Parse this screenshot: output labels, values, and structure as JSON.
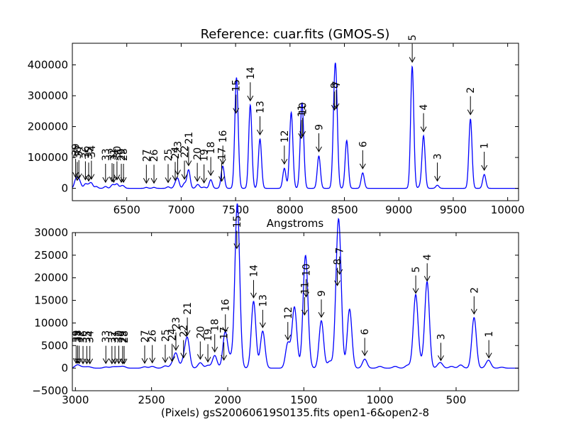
{
  "chart_data": [
    {
      "type": "line",
      "title": "Reference: cuar.fits (GMOS-S)",
      "xlabel": "Angstroms",
      "ylabel": "",
      "xlim": [
        6000,
        10100
      ],
      "ylim": [
        -40000,
        470000
      ],
      "x_ticks": [
        6500,
        7000,
        7500,
        8000,
        8500,
        9000,
        9500,
        10000
      ],
      "x_tick_labels": [
        "6500",
        "7000",
        "7500",
        "8000",
        "8500",
        "9000",
        "9500",
        "10000"
      ],
      "y_ticks": [
        0,
        100000,
        200000,
        300000,
        400000
      ],
      "y_tick_labels": [
        "0",
        "100000",
        "200000",
        "300000",
        "400000"
      ],
      "line_color": "#0000ff",
      "series": [
        {
          "peaks": [
            {
              "x": 6030,
              "y": 22000
            },
            {
              "x": 6045,
              "y": 12000
            },
            {
              "x": 6060,
              "y": 18000
            },
            {
              "x": 6075,
              "y": 8000
            },
            {
              "x": 6120,
              "y": 14000
            },
            {
              "x": 6150,
              "y": 10000
            },
            {
              "x": 6175,
              "y": 16000
            },
            {
              "x": 6220,
              "y": 6000
            },
            {
              "x": 6305,
              "y": 6000
            },
            {
              "x": 6365,
              "y": 8000
            },
            {
              "x": 6380,
              "y": 6000
            },
            {
              "x": 6410,
              "y": 14000
            },
            {
              "x": 6450,
              "y": 6000
            },
            {
              "x": 6470,
              "y": 6000
            },
            {
              "x": 6680,
              "y": 3000
            },
            {
              "x": 6750,
              "y": 3000
            },
            {
              "x": 6880,
              "y": 5000
            },
            {
              "x": 6945,
              "y": 12000
            },
            {
              "x": 6968,
              "y": 30000
            },
            {
              "x": 7030,
              "y": 16000
            },
            {
              "x": 7068,
              "y": 60000
            },
            {
              "x": 7148,
              "y": 9000
            },
            {
              "x": 7162,
              "y": 5000
            },
            {
              "x": 7210,
              "y": 4000
            },
            {
              "x": 7272,
              "y": 28000
            },
            {
              "x": 7372,
              "y": 9000
            },
            {
              "x": 7383,
              "y": 65000
            },
            {
              "x": 7504,
              "y": 230000
            },
            {
              "x": 7515,
              "y": 155000
            },
            {
              "x": 7635,
              "y": 270000
            },
            {
              "x": 7724,
              "y": 160000
            },
            {
              "x": 7948,
              "y": 65000
            },
            {
              "x": 8006,
              "y": 108000
            },
            {
              "x": 8015,
              "y": 150000
            },
            {
              "x": 8104,
              "y": 148000
            },
            {
              "x": 8116,
              "y": 155000
            },
            {
              "x": 8265,
              "y": 105000
            },
            {
              "x": 8408,
              "y": 240000
            },
            {
              "x": 8425,
              "y": 245000
            },
            {
              "x": 8521,
              "y": 155000
            },
            {
              "x": 8668,
              "y": 50000
            },
            {
              "x": 9123,
              "y": 395000
            },
            {
              "x": 9195,
              "y": 6000
            },
            {
              "x": 9227,
              "y": 170000
            },
            {
              "x": 9354,
              "y": 10000
            },
            {
              "x": 9658,
              "y": 225000
            },
            {
              "x": 9785,
              "y": 45000
            }
          ]
        }
      ],
      "annotations": [
        {
          "label": "39",
          "x": 6030,
          "y": 22000
        },
        {
          "label": "38",
          "x": 6045,
          "y": 12000
        },
        {
          "label": "37",
          "x": 6060,
          "y": 18000
        },
        {
          "label": "36",
          "x": 6120,
          "y": 14000
        },
        {
          "label": "35",
          "x": 6150,
          "y": 10000
        },
        {
          "label": "34",
          "x": 6175,
          "y": 16000
        },
        {
          "label": "33",
          "x": 6305,
          "y": 6000
        },
        {
          "label": "32",
          "x": 6365,
          "y": 8000
        },
        {
          "label": "31",
          "x": 6380,
          "y": 6000
        },
        {
          "label": "30",
          "x": 6410,
          "y": 14000
        },
        {
          "label": "29",
          "x": 6450,
          "y": 6000
        },
        {
          "label": "28",
          "x": 6470,
          "y": 6000
        },
        {
          "label": "27",
          "x": 6680,
          "y": 3000
        },
        {
          "label": "26",
          "x": 6750,
          "y": 3000
        },
        {
          "label": "25",
          "x": 6880,
          "y": 5000
        },
        {
          "label": "24",
          "x": 6945,
          "y": 12000
        },
        {
          "label": "23",
          "x": 6968,
          "y": 30000
        },
        {
          "label": "22",
          "x": 7030,
          "y": 16000
        },
        {
          "label": "21",
          "x": 7068,
          "y": 60000
        },
        {
          "label": "20",
          "x": 7148,
          "y": 9000
        },
        {
          "label": "19",
          "x": 7210,
          "y": 4000
        },
        {
          "label": "18",
          "x": 7272,
          "y": 28000
        },
        {
          "label": "17",
          "x": 7372,
          "y": 9000
        },
        {
          "label": "16",
          "x": 7383,
          "y": 65000
        },
        {
          "label": "15",
          "x": 7504,
          "y": 230000
        },
        {
          "label": "14",
          "x": 7635,
          "y": 270000
        },
        {
          "label": "13",
          "x": 7724,
          "y": 160000
        },
        {
          "label": "12",
          "x": 7948,
          "y": 65000
        },
        {
          "label": "11",
          "x": 8104,
          "y": 148000
        },
        {
          "label": "10",
          "x": 8116,
          "y": 155000
        },
        {
          "label": "9",
          "x": 8265,
          "y": 105000
        },
        {
          "label": "8",
          "x": 8408,
          "y": 240000
        },
        {
          "label": "7",
          "x": 8425,
          "y": 245000
        },
        {
          "label": "6",
          "x": 8668,
          "y": 50000
        },
        {
          "label": "5",
          "x": 9123,
          "y": 395000
        },
        {
          "label": "4",
          "x": 9227,
          "y": 170000
        },
        {
          "label": "3",
          "x": 9354,
          "y": 10000
        },
        {
          "label": "2",
          "x": 9658,
          "y": 225000
        },
        {
          "label": "1",
          "x": 9785,
          "y": 45000
        }
      ]
    },
    {
      "type": "line",
      "title": "",
      "xlabel": "(Pixels) gsS20060619S0135.fits open1-6&open2-8",
      "ylabel": "",
      "xlim": [
        3020,
        90
      ],
      "ylim": [
        -5000,
        30000
      ],
      "x_ticks": [
        3000,
        2500,
        2000,
        1500,
        1000,
        500
      ],
      "x_tick_labels": [
        "3000",
        "2500",
        "2000",
        "1500",
        "1000",
        "500"
      ],
      "y_ticks": [
        -5000,
        0,
        5000,
        10000,
        15000,
        20000,
        25000,
        30000
      ],
      "y_tick_labels": [
        "−5000",
        "0",
        "5000",
        "10000",
        "15000",
        "20000",
        "25000",
        "30000"
      ],
      "line_color": "#0000ff",
      "series": [
        {
          "peaks": [
            {
              "x": 2995,
              "y": 300
            },
            {
              "x": 2985,
              "y": 300
            },
            {
              "x": 2975,
              "y": 250
            },
            {
              "x": 2950,
              "y": 200
            },
            {
              "x": 2925,
              "y": 200
            },
            {
              "x": 2905,
              "y": 200
            },
            {
              "x": 2800,
              "y": 250
            },
            {
              "x": 2760,
              "y": 200
            },
            {
              "x": 2740,
              "y": 200
            },
            {
              "x": 2715,
              "y": 250
            },
            {
              "x": 2690,
              "y": 200
            },
            {
              "x": 2680,
              "y": 200
            },
            {
              "x": 2545,
              "y": 300
            },
            {
              "x": 2495,
              "y": 400
            },
            {
              "x": 2410,
              "y": 500
            },
            {
              "x": 2365,
              "y": 700
            },
            {
              "x": 2340,
              "y": 3200
            },
            {
              "x": 2290,
              "y": 1500
            },
            {
              "x": 2265,
              "y": 6500
            },
            {
              "x": 2180,
              "y": 1200
            },
            {
              "x": 2130,
              "y": 600
            },
            {
              "x": 2085,
              "y": 2800
            },
            {
              "x": 2025,
              "y": 1000
            },
            {
              "x": 2015,
              "y": 7200
            },
            {
              "x": 1980,
              "y": 2000
            },
            {
              "x": 1940,
              "y": 25700
            },
            {
              "x": 1930,
              "y": 12500
            },
            {
              "x": 1830,
              "y": 14800
            },
            {
              "x": 1770,
              "y": 8200
            },
            {
              "x": 1605,
              "y": 5500
            },
            {
              "x": 1565,
              "y": 9200
            },
            {
              "x": 1555,
              "y": 5000
            },
            {
              "x": 1495,
              "y": 11000
            },
            {
              "x": 1485,
              "y": 15000
            },
            {
              "x": 1470,
              "y": 800
            },
            {
              "x": 1385,
              "y": 10500
            },
            {
              "x": 1330,
              "y": 1500
            },
            {
              "x": 1280,
              "y": 17500
            },
            {
              "x": 1265,
              "y": 20000
            },
            {
              "x": 1200,
              "y": 12500
            },
            {
              "x": 1190,
              "y": 700
            },
            {
              "x": 1100,
              "y": 2000
            },
            {
              "x": 1000,
              "y": 400
            },
            {
              "x": 900,
              "y": 400
            },
            {
              "x": 820,
              "y": 600
            },
            {
              "x": 785,
              "y": 900
            },
            {
              "x": 765,
              "y": 15800
            },
            {
              "x": 740,
              "y": 500
            },
            {
              "x": 725,
              "y": 600
            },
            {
              "x": 705,
              "y": 1000
            },
            {
              "x": 690,
              "y": 18500
            },
            {
              "x": 615,
              "y": 500
            },
            {
              "x": 600,
              "y": 900
            },
            {
              "x": 530,
              "y": 400
            },
            {
              "x": 470,
              "y": 700
            },
            {
              "x": 382,
              "y": 11200
            },
            {
              "x": 300,
              "y": 400
            },
            {
              "x": 285,
              "y": 1500
            },
            {
              "x": 200,
              "y": 200
            }
          ]
        }
      ],
      "annotations": [
        {
          "label": "39",
          "x": 2995,
          "y": 300
        },
        {
          "label": "38",
          "x": 2985,
          "y": 300
        },
        {
          "label": "37",
          "x": 2975,
          "y": 250
        },
        {
          "label": "36",
          "x": 2950,
          "y": 200
        },
        {
          "label": "35",
          "x": 2925,
          "y": 200
        },
        {
          "label": "34",
          "x": 2905,
          "y": 200
        },
        {
          "label": "33",
          "x": 2800,
          "y": 250
        },
        {
          "label": "32",
          "x": 2760,
          "y": 200
        },
        {
          "label": "31",
          "x": 2740,
          "y": 200
        },
        {
          "label": "30",
          "x": 2715,
          "y": 250
        },
        {
          "label": "29",
          "x": 2690,
          "y": 200
        },
        {
          "label": "28",
          "x": 2680,
          "y": 200
        },
        {
          "label": "27",
          "x": 2545,
          "y": 300
        },
        {
          "label": "26",
          "x": 2495,
          "y": 400
        },
        {
          "label": "25",
          "x": 2410,
          "y": 500
        },
        {
          "label": "24",
          "x": 2365,
          "y": 700
        },
        {
          "label": "23",
          "x": 2340,
          "y": 3200
        },
        {
          "label": "22",
          "x": 2290,
          "y": 1500
        },
        {
          "label": "21",
          "x": 2265,
          "y": 6500
        },
        {
          "label": "20",
          "x": 2180,
          "y": 1200
        },
        {
          "label": "19",
          "x": 2130,
          "y": 600
        },
        {
          "label": "18",
          "x": 2085,
          "y": 2800
        },
        {
          "label": "17",
          "x": 2025,
          "y": 1000
        },
        {
          "label": "16",
          "x": 2015,
          "y": 7200
        },
        {
          "label": "15",
          "x": 1940,
          "y": 25700
        },
        {
          "label": "14",
          "x": 1830,
          "y": 14800
        },
        {
          "label": "13",
          "x": 1770,
          "y": 8200
        },
        {
          "label": "12",
          "x": 1605,
          "y": 5500
        },
        {
          "label": "11",
          "x": 1495,
          "y": 11000
        },
        {
          "label": "10",
          "x": 1485,
          "y": 15000
        },
        {
          "label": "9",
          "x": 1385,
          "y": 10500
        },
        {
          "label": "8",
          "x": 1280,
          "y": 17500
        },
        {
          "label": "7",
          "x": 1265,
          "y": 20000
        },
        {
          "label": "6",
          "x": 1100,
          "y": 2000
        },
        {
          "label": "5",
          "x": 765,
          "y": 15800
        },
        {
          "label": "4",
          "x": 690,
          "y": 18500
        },
        {
          "label": "3",
          "x": 600,
          "y": 900
        },
        {
          "label": "2",
          "x": 382,
          "y": 11200
        },
        {
          "label": "1",
          "x": 285,
          "y": 1500
        }
      ]
    }
  ]
}
